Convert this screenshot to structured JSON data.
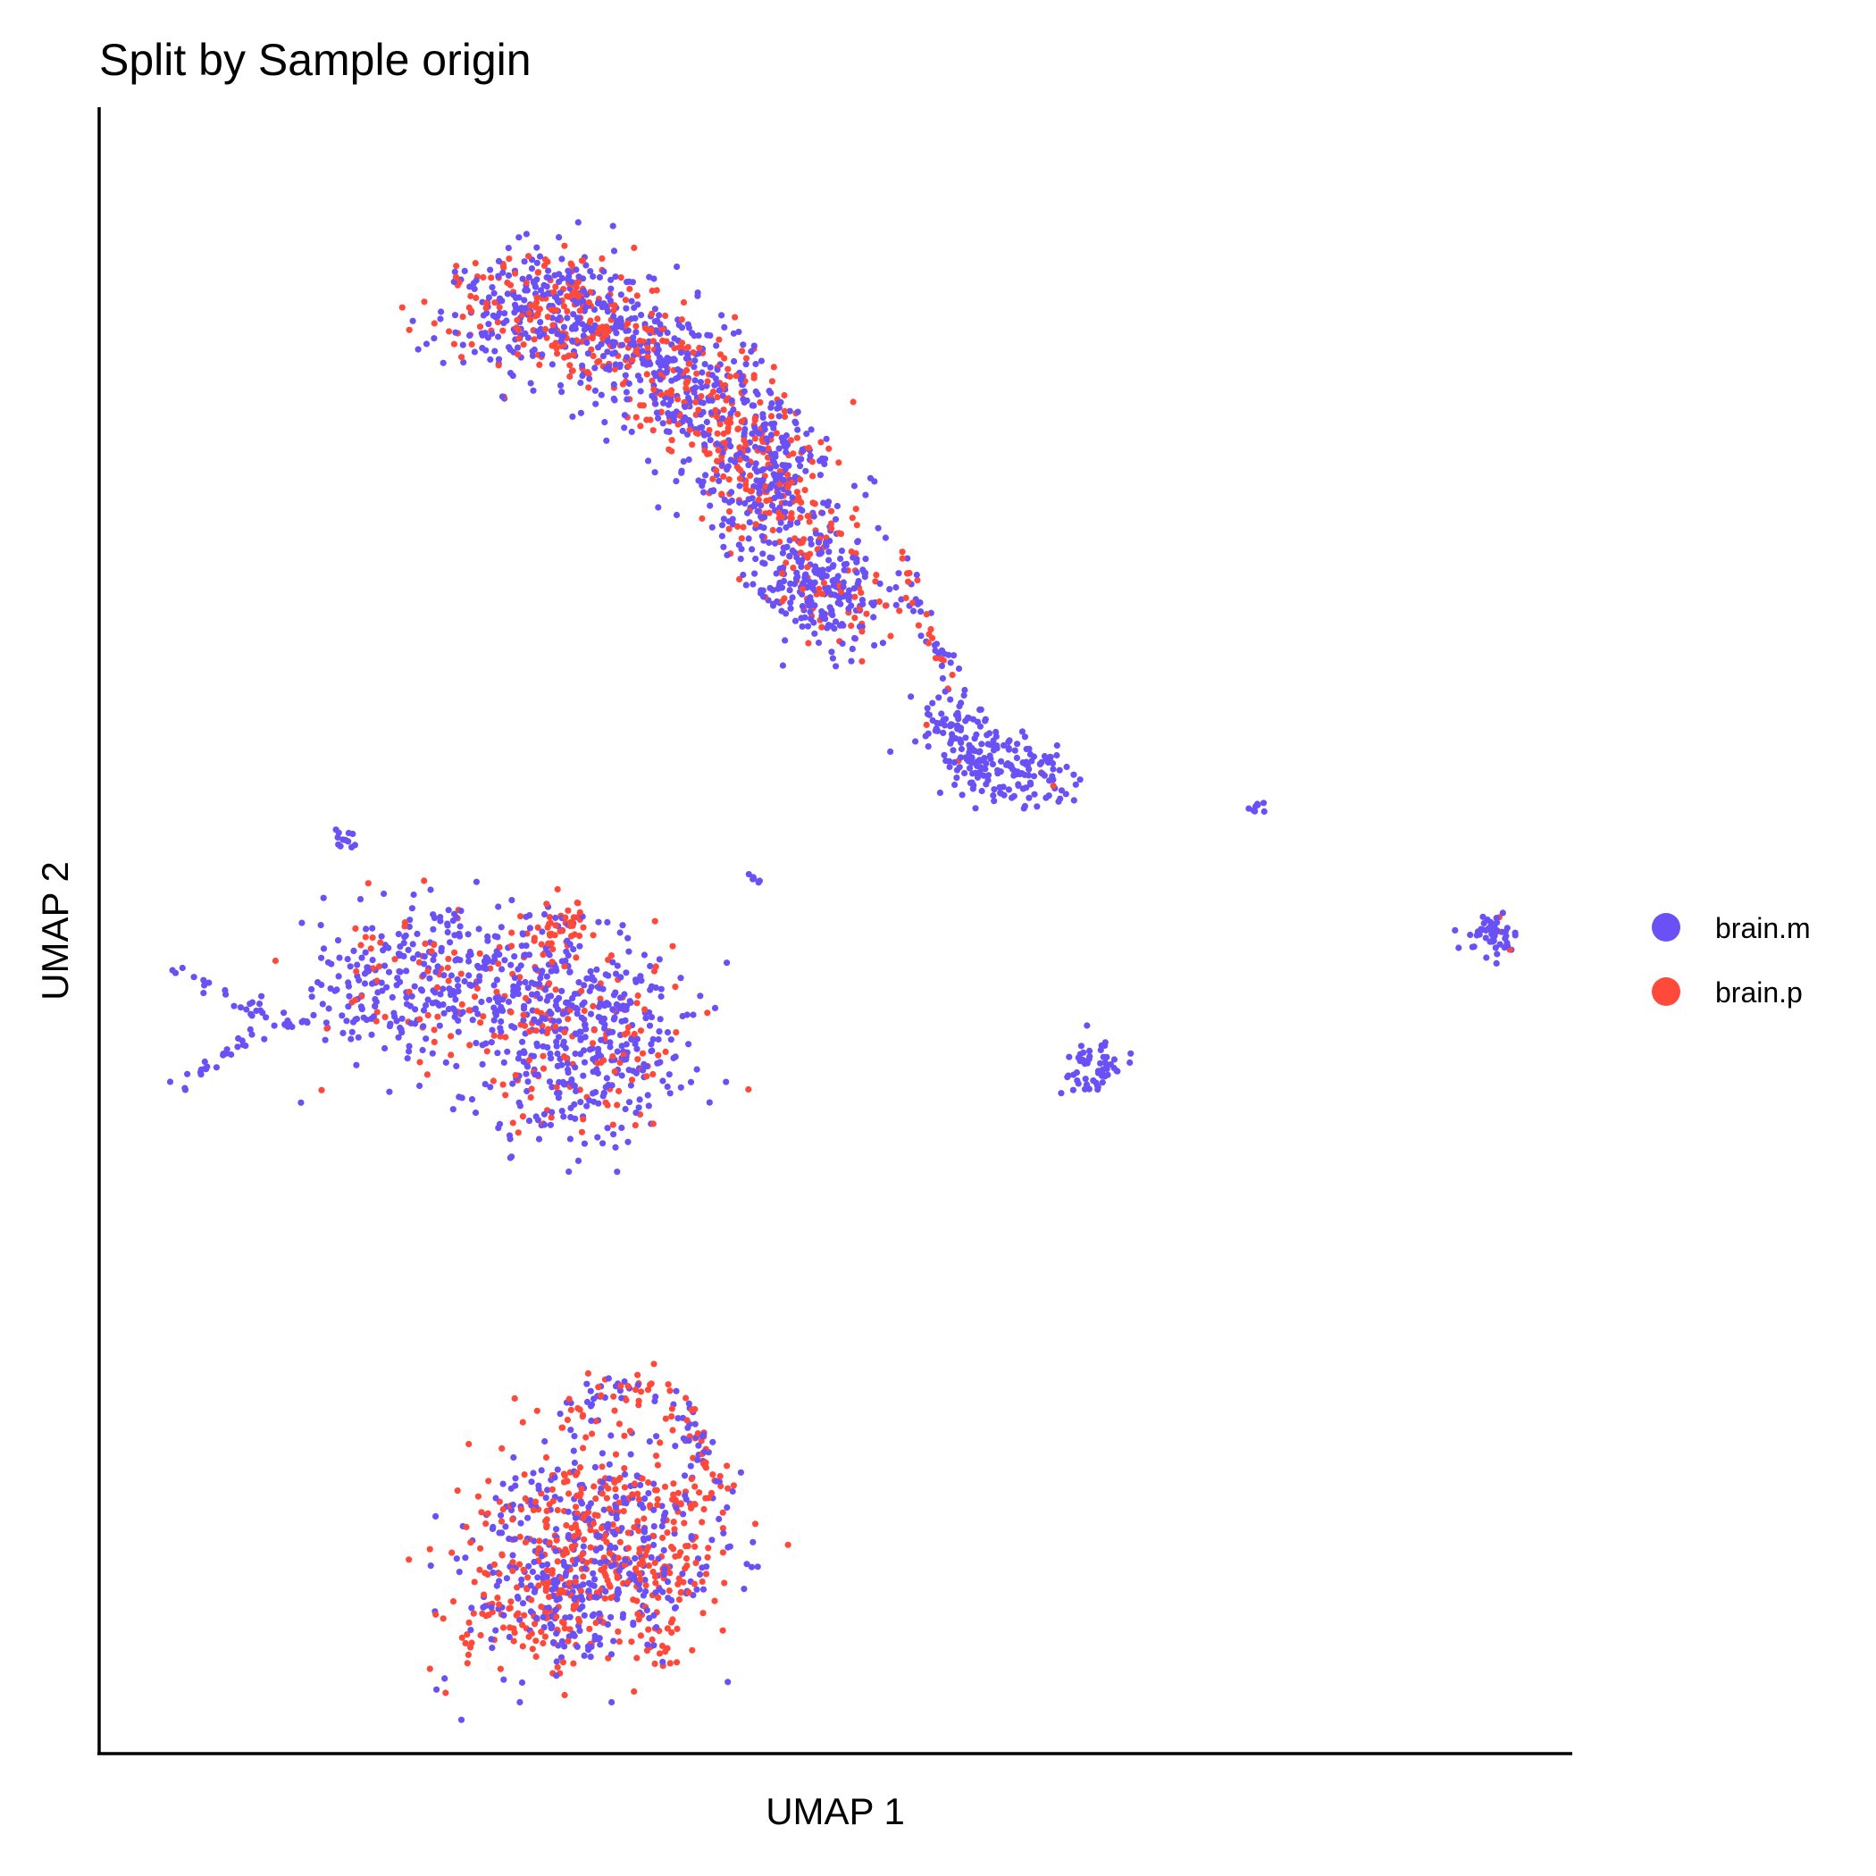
{
  "chart_data": {
    "type": "scatter",
    "title": "Split by Sample origin",
    "xlabel": "UMAP 1",
    "ylabel": "UMAP 2",
    "xlim": [
      -10,
      10
    ],
    "ylim": [
      -12,
      12
    ],
    "grid": false,
    "legend_position": "right",
    "series": [
      {
        "name": "brain.m",
        "color": "#6A51F5"
      },
      {
        "name": "brain.p",
        "color": "#FF4A3B"
      }
    ],
    "clusters": [
      {
        "id": "upper-arc",
        "spine": [
          [
            -4.9,
            8.9
          ],
          [
            -4.2,
            9.1
          ],
          [
            -3.3,
            9.0
          ],
          [
            -2.6,
            8.4
          ],
          [
            -1.8,
            7.8
          ],
          [
            -1.1,
            6.9
          ],
          [
            -0.4,
            5.8
          ]
        ],
        "radius": 0.75,
        "count": 1300,
        "share_p": 0.38
      },
      {
        "id": "upper-lobe",
        "spine": [
          [
            -0.8,
            5.3
          ],
          [
            -0.1,
            4.9
          ],
          [
            0.4,
            4.7
          ]
        ],
        "radius": 0.55,
        "count": 260,
        "share_p": 0.25
      },
      {
        "id": "bridge",
        "spine": [
          [
            0.9,
            5.4
          ],
          [
            1.2,
            4.4
          ],
          [
            1.6,
            3.6
          ]
        ],
        "radius": 0.15,
        "count": 45,
        "share_p": 0.55
      },
      {
        "id": "upper-tail",
        "spine": [
          [
            1.5,
            3.2
          ],
          [
            2.0,
            2.4
          ],
          [
            2.4,
            2.3
          ],
          [
            3.0,
            2.2
          ]
        ],
        "radius": 0.42,
        "count": 230,
        "share_p": 0.02
      },
      {
        "id": "left-blob",
        "spine": [
          [
            -6.8,
            -0.9
          ],
          [
            -5.6,
            -0.7
          ],
          [
            -4.5,
            -0.8
          ],
          [
            -3.3,
            -1.0
          ],
          [
            -2.7,
            -1.8
          ],
          [
            -4.3,
            -2.3
          ]
        ],
        "radius": 0.95,
        "count": 900,
        "share_p": 0.22
      },
      {
        "id": "left-arm",
        "spine": [
          [
            -9.0,
            -0.5
          ],
          [
            -8.0,
            -1.1
          ],
          [
            -7.2,
            -1.3
          ],
          [
            -8.2,
            -1.7
          ],
          [
            -9.0,
            -2.3
          ]
        ],
        "radius": 0.12,
        "count": 60,
        "share_p": 0.0
      },
      {
        "id": "left-peak",
        "spine": [
          [
            -3.9,
            0.0
          ],
          [
            -3.5,
            0.2
          ]
        ],
        "radius": 0.3,
        "count": 45,
        "share_p": 0.9
      },
      {
        "id": "lower-blob",
        "spine": [
          [
            -4.6,
            -10.0
          ],
          [
            -3.6,
            -9.8
          ],
          [
            -2.6,
            -9.6
          ],
          [
            -2.3,
            -8.7
          ],
          [
            -3.5,
            -8.4
          ],
          [
            -4.5,
            -8.9
          ]
        ],
        "radius": 0.95,
        "count": 900,
        "share_p": 0.55
      },
      {
        "id": "lower-arc",
        "spine": [
          [
            -3.7,
            -7.2
          ],
          [
            -3.0,
            -6.6
          ],
          [
            -2.3,
            -6.8
          ],
          [
            -1.8,
            -7.5
          ],
          [
            -1.6,
            -8.3
          ]
        ],
        "radius": 0.22,
        "count": 110,
        "share_p": 0.6
      },
      {
        "id": "islet-a",
        "spine": [
          [
            -6.7,
            1.3
          ]
        ],
        "radius": 0.12,
        "count": 12,
        "share_p": 0.0
      },
      {
        "id": "islet-b",
        "spine": [
          [
            -1.1,
            0.75
          ]
        ],
        "radius": 0.07,
        "count": 6,
        "share_p": 0.0
      },
      {
        "id": "islet-c",
        "spine": [
          [
            5.7,
            1.8
          ]
        ],
        "radius": 0.08,
        "count": 8,
        "share_p": 0.0
      },
      {
        "id": "islet-d",
        "spine": [
          [
            3.5,
            -2.0
          ]
        ],
        "radius": 0.32,
        "count": 60,
        "share_p": 0.0
      },
      {
        "id": "islet-e",
        "spine": [
          [
            8.9,
            -0.05
          ]
        ],
        "radius": 0.28,
        "count": 55,
        "share_p": 0.05
      }
    ]
  }
}
